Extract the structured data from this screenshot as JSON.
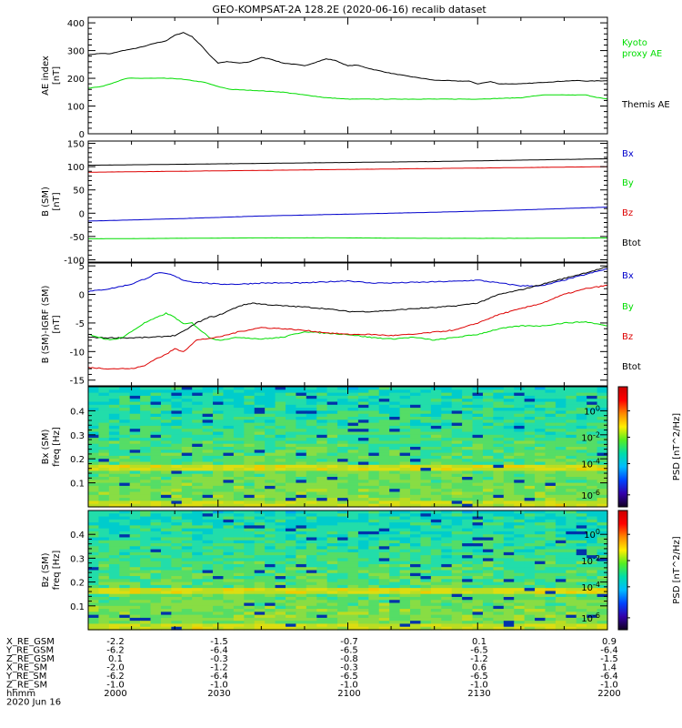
{
  "title": "GEO-KOMPSAT-2A 128.2E (2020-06-16) recalib dataset",
  "chart_data": [
    {
      "type": "line",
      "id": "ae",
      "ylabel": [
        "AE index",
        "[nT]"
      ],
      "ylim": [
        0,
        420
      ],
      "yticks": [
        0,
        100,
        200,
        300,
        400
      ],
      "xlim": [
        0,
        120
      ],
      "legend": [
        {
          "name": "Kyoto proxy AE",
          "lines": [
            "Kyoto",
            "proxy AE"
          ],
          "color": "#00dd00"
        },
        {
          "name": "Themis AE",
          "lines": [
            "Themis AE"
          ],
          "color": "#000000"
        }
      ],
      "series": [
        {
          "name": "Themis AE",
          "color": "#000000",
          "x": [
            0,
            3,
            5,
            8,
            10,
            13,
            15,
            18,
            20,
            22,
            24,
            26,
            28,
            30,
            32,
            35,
            37,
            40,
            42,
            45,
            48,
            50,
            53,
            55,
            57,
            60,
            62,
            65,
            67,
            70,
            73,
            75,
            78,
            80,
            83,
            85,
            88,
            90,
            93,
            95,
            98,
            100,
            103,
            105,
            108,
            110,
            113,
            115,
            118,
            120
          ],
          "y": [
            285,
            290,
            288,
            300,
            305,
            315,
            325,
            335,
            355,
            365,
            350,
            320,
            285,
            255,
            260,
            255,
            258,
            275,
            270,
            255,
            250,
            245,
            260,
            270,
            265,
            245,
            248,
            235,
            228,
            218,
            210,
            205,
            198,
            193,
            192,
            190,
            190,
            180,
            188,
            180,
            180,
            180,
            183,
            185,
            188,
            190,
            192,
            190,
            191,
            191
          ]
        },
        {
          "name": "Kyoto proxy AE",
          "color": "#00dd00",
          "x": [
            0,
            3,
            6,
            9,
            12,
            15,
            18,
            21,
            24,
            27,
            30,
            33,
            36,
            40,
            45,
            50,
            55,
            60,
            70,
            80,
            90,
            100,
            105,
            110,
            115,
            118,
            120
          ],
          "y": [
            165,
            170,
            185,
            200,
            200,
            200,
            200,
            198,
            192,
            185,
            170,
            160,
            158,
            155,
            150,
            140,
            130,
            125,
            125,
            125,
            125,
            130,
            140,
            140,
            140,
            130,
            125
          ]
        }
      ]
    },
    {
      "type": "line",
      "id": "b",
      "ylabel": [
        "B (SM)",
        "[nT]"
      ],
      "ylim": [
        -105,
        155
      ],
      "yticks": [
        -100,
        -50,
        0,
        50,
        100,
        150
      ],
      "xlim": [
        0,
        120
      ],
      "legend": [
        {
          "name": "Bx",
          "lines": [
            "Bx"
          ],
          "color": "#0000cc"
        },
        {
          "name": "By",
          "lines": [
            "By"
          ],
          "color": "#00dd00"
        },
        {
          "name": "Bz",
          "lines": [
            "Bz"
          ],
          "color": "#dd0000"
        },
        {
          "name": "Btot",
          "lines": [
            "Btot"
          ],
          "color": "#000000"
        }
      ],
      "series": [
        {
          "name": "Btot",
          "color": "#000000",
          "x": [
            0,
            20,
            40,
            60,
            80,
            100,
            120
          ],
          "y": [
            103,
            105,
            107,
            109,
            111,
            114,
            117
          ]
        },
        {
          "name": "Bz",
          "color": "#dd0000",
          "x": [
            0,
            20,
            40,
            60,
            80,
            100,
            120
          ],
          "y": [
            88,
            90,
            92,
            94,
            96,
            98,
            100
          ]
        },
        {
          "name": "Bx",
          "color": "#0000cc",
          "x": [
            0,
            20,
            40,
            60,
            80,
            100,
            120
          ],
          "y": [
            -17,
            -12,
            -6,
            -2,
            2,
            7,
            13
          ]
        },
        {
          "name": "By",
          "color": "#00dd00",
          "x": [
            0,
            20,
            40,
            60,
            80,
            100,
            120
          ],
          "y": [
            -55,
            -54,
            -53,
            -53,
            -54,
            -54,
            -53
          ]
        }
      ]
    },
    {
      "type": "line",
      "id": "bdiff",
      "ylabel": [
        "B (SM)-IGRF (SM)",
        "[nT]"
      ],
      "ylim": [
        -16,
        5.5
      ],
      "yticks": [
        -15,
        -10,
        -5,
        0,
        5
      ],
      "xlim": [
        0,
        120
      ],
      "legend": [
        {
          "name": "Bx",
          "lines": [
            "Bx"
          ],
          "color": "#0000cc"
        },
        {
          "name": "By",
          "lines": [
            "By"
          ],
          "color": "#00dd00"
        },
        {
          "name": "Bz",
          "lines": [
            "Bz"
          ],
          "color": "#dd0000"
        },
        {
          "name": "Btot",
          "lines": [
            "Btot"
          ],
          "color": "#000000"
        }
      ],
      "series": [
        {
          "name": "Bx",
          "color": "#0000cc",
          "x": [
            0,
            5,
            10,
            14,
            16,
            19,
            22,
            24,
            27,
            30,
            35,
            40,
            45,
            50,
            55,
            60,
            65,
            70,
            75,
            80,
            85,
            90,
            95,
            100,
            105,
            110,
            115,
            120
          ],
          "y": [
            0.5,
            1,
            1.8,
            3,
            3.8,
            3.5,
            2.5,
            2.2,
            2,
            1.8,
            1.8,
            2,
            2,
            2,
            2.2,
            2.4,
            2,
            2,
            2.1,
            2.2,
            2.3,
            2.5,
            2,
            1.5,
            1.5,
            2.5,
            3.5,
            4.5
          ]
        },
        {
          "name": "Btot",
          "color": "#000000",
          "x": [
            0,
            5,
            10,
            15,
            20,
            22,
            25,
            28,
            30,
            35,
            38,
            40,
            45,
            50,
            55,
            60,
            65,
            70,
            75,
            80,
            85,
            90,
            95,
            100,
            105,
            110,
            115,
            120
          ],
          "y": [
            -7.5,
            -7.6,
            -7.6,
            -7.5,
            -7.2,
            -6.5,
            -5,
            -4,
            -3.7,
            -2,
            -1.5,
            -1.7,
            -2,
            -2.2,
            -2.5,
            -3,
            -3,
            -2.8,
            -2.5,
            -2.3,
            -2,
            -1.5,
            0,
            0.8,
            1.8,
            2.8,
            3.8,
            4.8
          ]
        },
        {
          "name": "By",
          "color": "#00dd00",
          "x": [
            0,
            5,
            8,
            10,
            13,
            16,
            18,
            20,
            22,
            24,
            26,
            28,
            30,
            35,
            40,
            45,
            50,
            55,
            60,
            65,
            70,
            75,
            80,
            85,
            90,
            95,
            100,
            105,
            110,
            115,
            120
          ],
          "y": [
            -7,
            -8,
            -7.5,
            -6.5,
            -5,
            -4,
            -3.3,
            -4,
            -5.2,
            -5,
            -6.3,
            -7.5,
            -8,
            -7.5,
            -7.8,
            -7.5,
            -6.5,
            -6.8,
            -7,
            -7.5,
            -7.8,
            -7.5,
            -8,
            -7.5,
            -7,
            -6,
            -5.5,
            -5.5,
            -5,
            -4.8,
            -5.5
          ]
        },
        {
          "name": "Bz",
          "color": "#dd0000",
          "x": [
            0,
            5,
            10,
            13,
            15,
            18,
            20,
            22,
            25,
            30,
            35,
            40,
            45,
            50,
            55,
            60,
            65,
            70,
            75,
            80,
            85,
            90,
            95,
            100,
            105,
            110,
            115,
            120
          ],
          "y": [
            -12.8,
            -13,
            -13,
            -12.5,
            -11.5,
            -10.5,
            -9.5,
            -10,
            -8,
            -7.5,
            -6.5,
            -5.8,
            -6,
            -6.3,
            -6.7,
            -7,
            -7,
            -7.2,
            -7,
            -6.6,
            -6.2,
            -5,
            -3.5,
            -2.5,
            -1.5,
            0,
            1,
            1.6
          ]
        }
      ]
    },
    {
      "type": "heatmap",
      "id": "spec-bx",
      "ylabel": [
        "Bx (SM)",
        "freq [Hz]"
      ],
      "ylim": [
        0,
        0.5
      ],
      "yticks": [
        0.1,
        0.2,
        0.3,
        0.4
      ],
      "colorbar": {
        "label": "PSD [nT^2/Hz]",
        "ticks": [
          "10^0",
          "10^-2",
          "10^-4",
          "10^-6"
        ]
      }
    },
    {
      "type": "heatmap",
      "id": "spec-bz",
      "ylabel": [
        "Bz (SM)",
        "freq [Hz]"
      ],
      "ylim": [
        0,
        0.5
      ],
      "yticks": [
        0.1,
        0.2,
        0.3,
        0.4
      ],
      "colorbar": {
        "label": "PSD [nT^2/Hz]",
        "ticks": [
          "10^0",
          "10^-2",
          "10^-4",
          "10^-6"
        ]
      }
    }
  ],
  "ephemeris": {
    "date": "2020 Jun 16",
    "rows": [
      {
        "label": "X_RE_GSM",
        "values": [
          "-2.2",
          "-1.5",
          "-0.7",
          "0.1",
          "0.9"
        ]
      },
      {
        "label": "Y_RE_GSM",
        "values": [
          "-6.2",
          "-6.4",
          "-6.5",
          "-6.5",
          "-6.4"
        ]
      },
      {
        "label": "Z_RE_GSM",
        "values": [
          "0.1",
          "-0.3",
          "-0.8",
          "-1.2",
          "-1.5"
        ]
      },
      {
        "label": "X_RE_SM",
        "values": [
          "-2.0",
          "-1.2",
          "-0.3",
          "0.6",
          "1.4"
        ]
      },
      {
        "label": "Y_RE_SM",
        "values": [
          "-6.2",
          "-6.4",
          "-6.5",
          "-6.5",
          "-6.4"
        ]
      },
      {
        "label": "Z_RE_SM",
        "values": [
          "-1.0",
          "-1.0",
          "-1.0",
          "-1.0",
          "-1.0"
        ]
      },
      {
        "label": "hhmm",
        "values": [
          "2000",
          "2030",
          "2100",
          "2130",
          "2200"
        ]
      }
    ]
  }
}
